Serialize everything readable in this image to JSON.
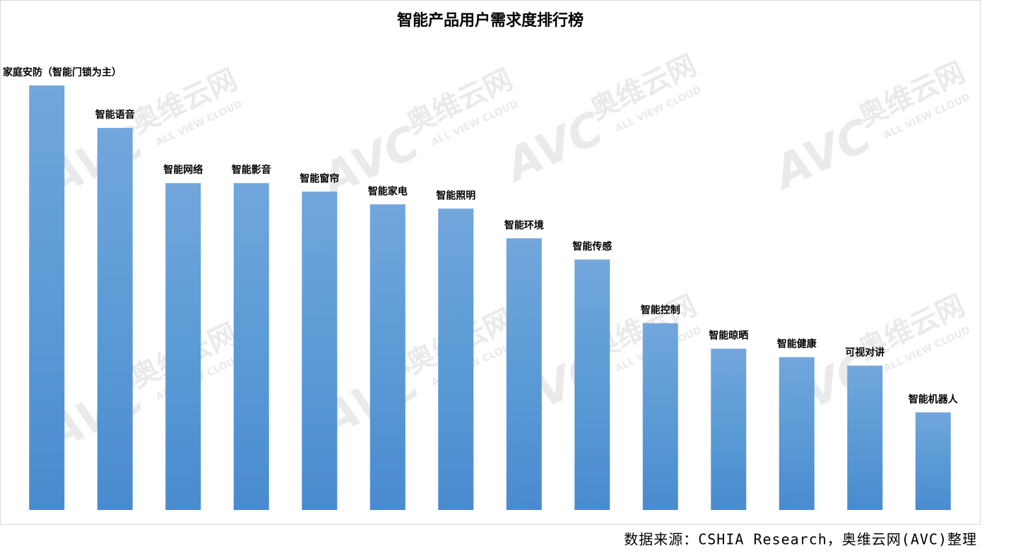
{
  "chart_data": {
    "type": "bar",
    "title": "智能产品用户需求度排行榜",
    "categories": [
      "家庭安防（智能门锁为主）",
      "智能语音",
      "智能网络",
      "智能影音",
      "智能窗帘",
      "智能家电",
      "智能照明",
      "智能环境",
      "智能传感",
      "智能控制",
      "智能晾晒",
      "智能健康",
      "可视对讲",
      "智能机器人"
    ],
    "values": [
      100,
      90,
      77,
      77,
      75,
      72,
      71,
      64,
      59,
      44,
      38,
      36,
      34,
      23
    ],
    "color": "#5b9bd5",
    "ylim": [
      0,
      100
    ],
    "source": "数据来源：CSHIA Research，奥维云网(AVC)整理",
    "watermark": {
      "logo": "AVC",
      "name": "奥维云网",
      "tagline": "ALL VIEW CLOUD"
    }
  }
}
